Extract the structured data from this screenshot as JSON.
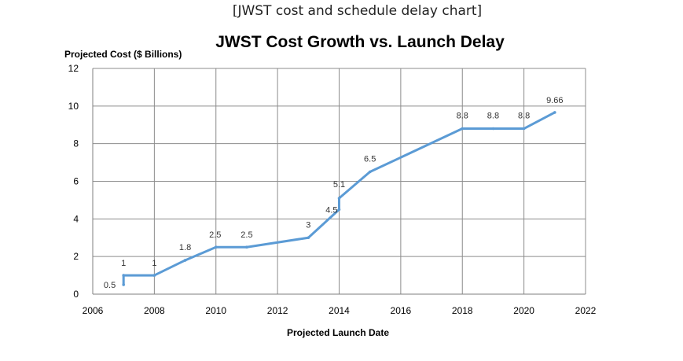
{
  "caption": "[JWST cost and schedule delay chart]",
  "chart_data": {
    "type": "line",
    "title": "JWST Cost Growth vs. Launch Delay",
    "xlabel": "Projected Launch Date",
    "ylabel": "Projected Cost ($ Billions)",
    "xlim": [
      2006,
      2022
    ],
    "ylim": [
      0,
      12
    ],
    "xticks": [
      2006,
      2008,
      2010,
      2012,
      2014,
      2016,
      2018,
      2020,
      2022
    ],
    "yticks": [
      0,
      2,
      4,
      6,
      8,
      10,
      12
    ],
    "grid": true,
    "line_color": "#5b9bd5",
    "series": [
      {
        "x": [
          2007,
          2007,
          2008,
          2009,
          2010,
          2011,
          2013,
          2014,
          2014,
          2015,
          2018,
          2019,
          2020,
          2021
        ],
        "values": [
          0.5,
          1,
          1,
          1.8,
          2.5,
          2.5,
          3,
          4.5,
          5.1,
          6.5,
          8.8,
          8.8,
          8.8,
          9.66
        ],
        "labels": [
          "0.5",
          "1",
          "1",
          "1.8",
          "2.5",
          "2.5",
          "3",
          "4.5",
          "5.1",
          "6.5",
          "8.8",
          "8.8",
          "8.8",
          "9.66"
        ]
      }
    ]
  }
}
